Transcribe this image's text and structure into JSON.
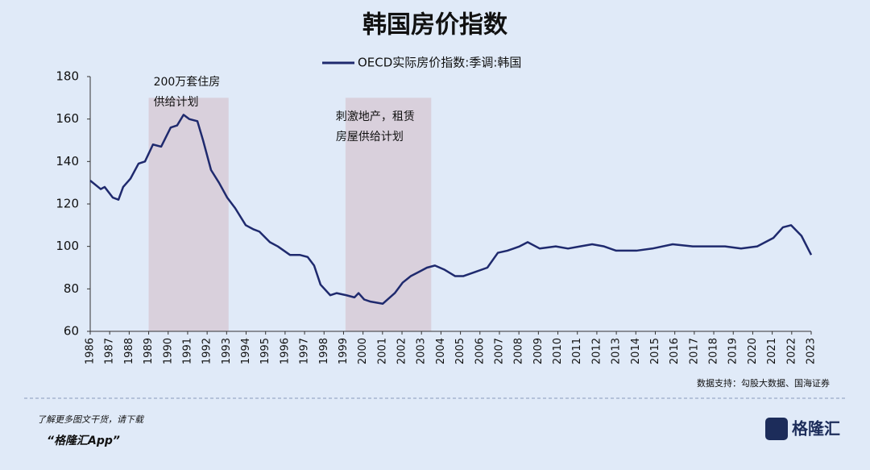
{
  "chart_data": {
    "type": "line",
    "title": "韩国房价指数",
    "x": [
      1986,
      1986.54,
      1986.74,
      1987.16,
      1987.45,
      1987.69,
      1988.07,
      1988.48,
      1988.81,
      1989.22,
      1989.64,
      1990.13,
      1990.46,
      1990.79,
      1991.08,
      1991.5,
      1991.79,
      1992.2,
      1992.61,
      1993.03,
      1993.44,
      1993.98,
      1994.39,
      1994.68,
      1995.22,
      1995.63,
      1996.25,
      1996.75,
      1997.16,
      1997.49,
      1997.82,
      1998.32,
      1998.65,
      1999.15,
      1999.56,
      1999.77,
      2000.06,
      2000.39,
      2001.01,
      2001.63,
      2002.04,
      2002.45,
      2002.87,
      2003.28,
      2003.69,
      2004.19,
      2004.73,
      2005.14,
      2005.76,
      2006.38,
      2006.92,
      2007.41,
      2008.03,
      2008.45,
      2009.07,
      2009.89,
      2010.52,
      2011.14,
      2011.76,
      2012.37,
      2012.99,
      2014.03,
      2014.85,
      2015.89,
      2016.92,
      2017.75,
      2018.58,
      2019.4,
      2020.23,
      2021.06,
      2021.55,
      2021.97,
      2022.5,
      2023
    ],
    "series": [
      {
        "name": "OECD实际房价指数:季调:韩国",
        "color": "#1f2a6e",
        "values": [
          131,
          127,
          128,
          123,
          122,
          128,
          132,
          139,
          140,
          148,
          147,
          156,
          157,
          162,
          160,
          159,
          150,
          136,
          130,
          123,
          118,
          110,
          108,
          107,
          102,
          100,
          96,
          96,
          95,
          91,
          82,
          77,
          78,
          77,
          76,
          78,
          75,
          74,
          73,
          78,
          83,
          86,
          88,
          90,
          91,
          89,
          86,
          86,
          88,
          90,
          97,
          98,
          100,
          102,
          99,
          100,
          99,
          100,
          101,
          100,
          98,
          98,
          99,
          101,
          100,
          100,
          100,
          99,
          100,
          104,
          109,
          110,
          105,
          96
        ]
      }
    ],
    "xlim": [
      1986,
      2023
    ],
    "xticks": [
      1986,
      1987,
      1988,
      1989,
      1990,
      1991,
      1992,
      1993,
      1994,
      1995,
      1996,
      1997,
      1998,
      1999,
      2000,
      2001,
      2002,
      2003,
      2004,
      2005,
      2006,
      2007,
      2008,
      2009,
      2010,
      2011,
      2012,
      2013,
      2014,
      2015,
      2016,
      2017,
      2018,
      2019,
      2020,
      2021,
      2022,
      2023
    ],
    "ylim": [
      60,
      180
    ],
    "yticks": [
      60,
      80,
      100,
      120,
      140,
      160,
      180
    ],
    "shaded_regions": [
      {
        "x": [
          1989,
          1993.1
        ],
        "label": [
          "200万套住房",
          "供给计划"
        ]
      },
      {
        "x": [
          1999.1,
          2003.5
        ],
        "label": [
          "刺激地产，租赁",
          "房屋供给计划"
        ]
      }
    ],
    "shade_color": "#d9d0dc",
    "source": "数据支持：勾股大数据、国海证券"
  },
  "footer": {
    "line1": "了解更多图文干货，请下载",
    "line2": "“格隆汇App”",
    "logo": "格隆汇"
  }
}
